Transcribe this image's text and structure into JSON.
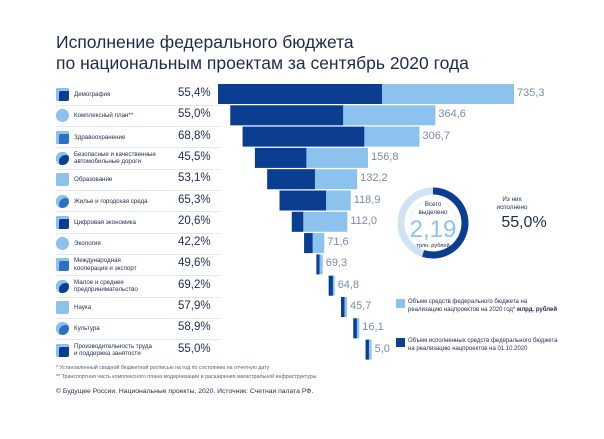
{
  "title": {
    "line1": "Исполнение федерального бюджета",
    "line2": "по национальным проектам за сентябрь 2020 года"
  },
  "colors": {
    "dark": "#0b3d91",
    "light": "#8cc2ee",
    "ring_bg": "#cfe3f5",
    "text": "#1d2b4f"
  },
  "chart_data": {
    "type": "bar",
    "orientation": "horizontal",
    "categories": [
      "Демография",
      "Комплексный план**",
      "Здравоохранение",
      "Безопасные и качественные автомобильные дороги",
      "Образование",
      "Жилье и городская среда",
      "Цифровая экономика",
      "Экология",
      "Международная кооперация и экспорт",
      "Малое и среднее предпринимательство",
      "Наука",
      "Культура",
      "Производительность труда и поддержка занятости"
    ],
    "category_lines": [
      [
        "Демография"
      ],
      [
        "Комплексный план**"
      ],
      [
        "Здравоохранение"
      ],
      [
        "Безопасные и качественные",
        "автомобильные дороги"
      ],
      [
        "Образование"
      ],
      [
        "Жилье и городская среда"
      ],
      [
        "Цифровая экономика"
      ],
      [
        "Экология"
      ],
      [
        "Международная",
        "кооперация и экспорт"
      ],
      [
        "Малое и среднее",
        "предпринимательство"
      ],
      [
        "Наука"
      ],
      [
        "Культура"
      ],
      [
        "Производительность труда",
        "и поддержка занятости"
      ]
    ],
    "icons": [
      "family-icon",
      "roads-network-icon",
      "health-cross-icon",
      "road-icon",
      "book-icon",
      "house-icon",
      "chip-icon",
      "leaf-icon",
      "globe-icon",
      "business-icon",
      "flask-icon",
      "theater-icon",
      "gear-icon"
    ],
    "series": [
      {
        "name": "Объем средств федерального бюджета на реализацию нацпроектов на 2020 год* млрд. рублей",
        "values": [
          735.3,
          364.6,
          306.7,
          156.8,
          132.2,
          118.9,
          112.0,
          71.6,
          69.3,
          64.8,
          45.7,
          16.1,
          5.0
        ]
      },
      {
        "name": "Объем исполненных средств федерального бюджета на реализацию нацпроектов на 01.10.2020",
        "percent_executed": [
          55.4,
          55.0,
          68.8,
          45.5,
          53.1,
          65.3,
          20.6,
          42.2,
          49.6,
          69.2,
          57.9,
          58.9,
          55.0
        ]
      }
    ],
    "value_labels": [
      "735,3",
      "364,6",
      "306,7",
      "156,8",
      "132,2",
      "118,9",
      "112,0",
      "71,6",
      "69,3",
      "64,8",
      "45,7",
      "16,1",
      "5,0"
    ],
    "percent_labels": [
      "55,4%",
      "55,0%",
      "68,8%",
      "45,5%",
      "53,1%",
      "65,3%",
      "20,6%",
      "42,2%",
      "49,6%",
      "69,2%",
      "57,9%",
      "58,9%",
      "55,0%"
    ]
  },
  "donut": {
    "total_label": "Всего выделено",
    "total_value": "2,19",
    "total_unit": "трлн. рублей",
    "executed_label": "Из них исполнено",
    "executed_value": "55,0%",
    "executed_fraction": 0.55
  },
  "legend": {
    "light_text": "Объем средств федерального бюджета на реализацию нацпроектов на 2020 год*",
    "light_unit": "млрд. рублей",
    "dark_text": "Объем исполненных средств федерального бюджета на реализацию нацпроектов на 01.10.2020"
  },
  "footnotes": [
    "* Установленный сводной бюджетной росписью на год по состоянию на отчетную дату",
    "** Транспортная часть комплексного плана модернизации и расширения магистральной инфраструктуры"
  ],
  "source": "© Будущее России. Национальные проекты, 2020. Источник: Счетная палата РФ."
}
